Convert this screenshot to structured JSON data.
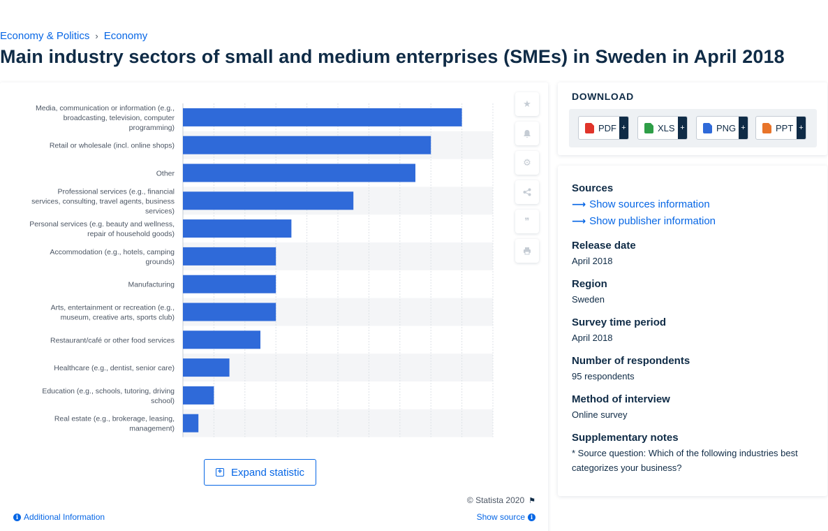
{
  "breadcrumb": {
    "item1": "Economy & Politics",
    "separator": "›",
    "item2": "Economy"
  },
  "page_title": "Main industry sectors of small and medium enterprises (SMEs) in Sweden in April 2018",
  "chart_data": {
    "type": "bar",
    "orientation": "horizontal",
    "categories": [
      [
        "Media, communication or information (e.g.,",
        "broadcasting, television, computer",
        "programming)"
      ],
      [
        "Retail or wholesale (incl. online shops)"
      ],
      [
        "Other"
      ],
      [
        "Professional services (e.g., financial",
        "services, consulting, travel agents, business",
        "services)"
      ],
      [
        "Personal services (e.g. beauty and wellness,",
        "repair of household goods)"
      ],
      [
        "Accommodation (e.g., hotels, camping",
        "grounds)"
      ],
      [
        "Manufacturing"
      ],
      [
        "Arts, entertainment or recreation (e.g.,",
        "museum, creative arts, sports club)"
      ],
      [
        "Restaurant/café or other food services"
      ],
      [
        "Healthcare (e.g., dentist, senior care)"
      ],
      [
        "Education (e.g., schools, tutoring, driving",
        "school)"
      ],
      [
        "Real estate (e.g., brokerage, leasing,",
        "management)"
      ]
    ],
    "values": [
      18,
      16,
      15,
      11,
      7,
      6,
      6,
      6,
      5,
      3,
      2,
      1
    ],
    "xlim": [
      0,
      20
    ],
    "grid": true,
    "bar_color": "#2f6ad9"
  },
  "toolbar_icons": [
    "star-icon",
    "bell-icon",
    "gear-icon",
    "share-icon",
    "quote-icon",
    "print-icon"
  ],
  "expand_label": "Expand statistic",
  "copyright": "© Statista 2020",
  "additional_info": "Additional Information",
  "show_source": "Show source",
  "download": {
    "title": "DOWNLOAD",
    "buttons": [
      {
        "label": "PDF",
        "color": "#e0342a"
      },
      {
        "label": "XLS",
        "color": "#2e9e47"
      },
      {
        "label": "PNG",
        "color": "#2f6ad9"
      },
      {
        "label": "PPT",
        "color": "#e8742a"
      }
    ],
    "plus": "+"
  },
  "sources": {
    "heading": "Sources",
    "link1": "Show sources information",
    "link2": "Show publisher information",
    "release_h": "Release date",
    "release_v": "April 2018",
    "region_h": "Region",
    "region_v": "Sweden",
    "period_h": "Survey time period",
    "period_v": "April 2018",
    "resp_h": "Number of respondents",
    "resp_v": "95 respondents",
    "method_h": "Method of interview",
    "method_v": "Online survey",
    "notes_h": "Supplementary notes",
    "notes_v": "* Source question: Which of the following industries best categorizes your business?"
  }
}
